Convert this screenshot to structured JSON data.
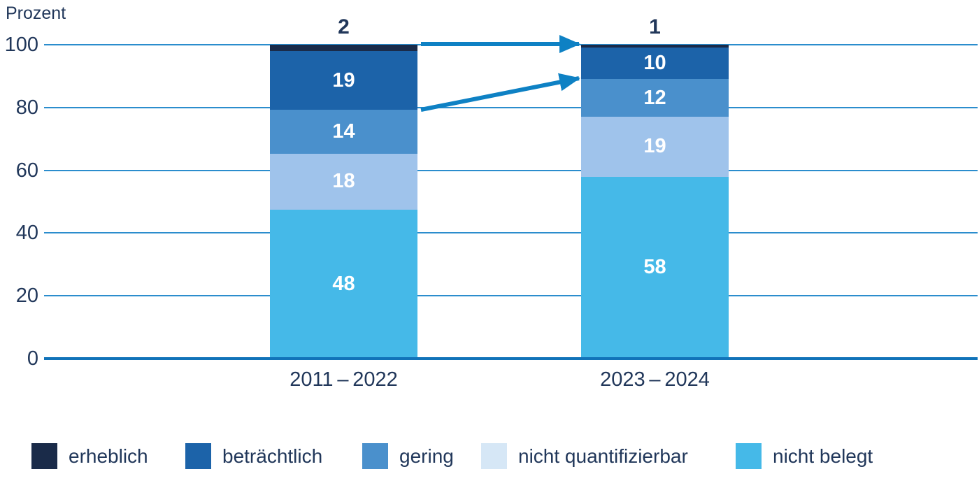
{
  "chart_data": {
    "type": "bar",
    "stacked": true,
    "ylabel": "Prozent",
    "categories": [
      "2011 – 2022",
      "2023 – 2024"
    ],
    "series": [
      {
        "name": "erheblich",
        "values": [
          2,
          1
        ],
        "color": "#1a2b49",
        "legend_color": "#1a2b49",
        "label_placement": "above"
      },
      {
        "name": "beträchtlich",
        "values": [
          19,
          10
        ],
        "color": "#1c63a9",
        "legend_color": "#1c63a9",
        "label_placement": "inside"
      },
      {
        "name": "gering",
        "values": [
          14,
          12
        ],
        "color": "#4a90cc",
        "legend_color": "#4a90cc",
        "label_placement": "inside"
      },
      {
        "name": "nicht quantifizierbar",
        "values": [
          18,
          19
        ],
        "color": "#9fc3eb",
        "legend_color": "#d6e7f6",
        "label_placement": "inside"
      },
      {
        "name": "nicht belegt",
        "values": [
          48,
          58
        ],
        "color": "#45b9e8",
        "legend_color": "#45b9e8",
        "label_placement": "inside"
      }
    ],
    "yticks": [
      0,
      20,
      40,
      60,
      80,
      100
    ],
    "ylim": [
      0,
      100
    ],
    "grid": true,
    "legend_position": "bottom",
    "annotations": {
      "arrows": [
        {
          "from_bar": 0,
          "from_level": 100,
          "to_bar": 1,
          "to_level": 100
        },
        {
          "from_bar": 0,
          "from_level": 79,
          "to_bar": 1,
          "to_level": 89
        }
      ],
      "arrow_color": "#0e81c4"
    },
    "colors": {
      "grid_line": "#2b8dcd",
      "baseline": "#1173b9",
      "axis_text": "#21375a",
      "segment_label": "#ffffff"
    }
  }
}
